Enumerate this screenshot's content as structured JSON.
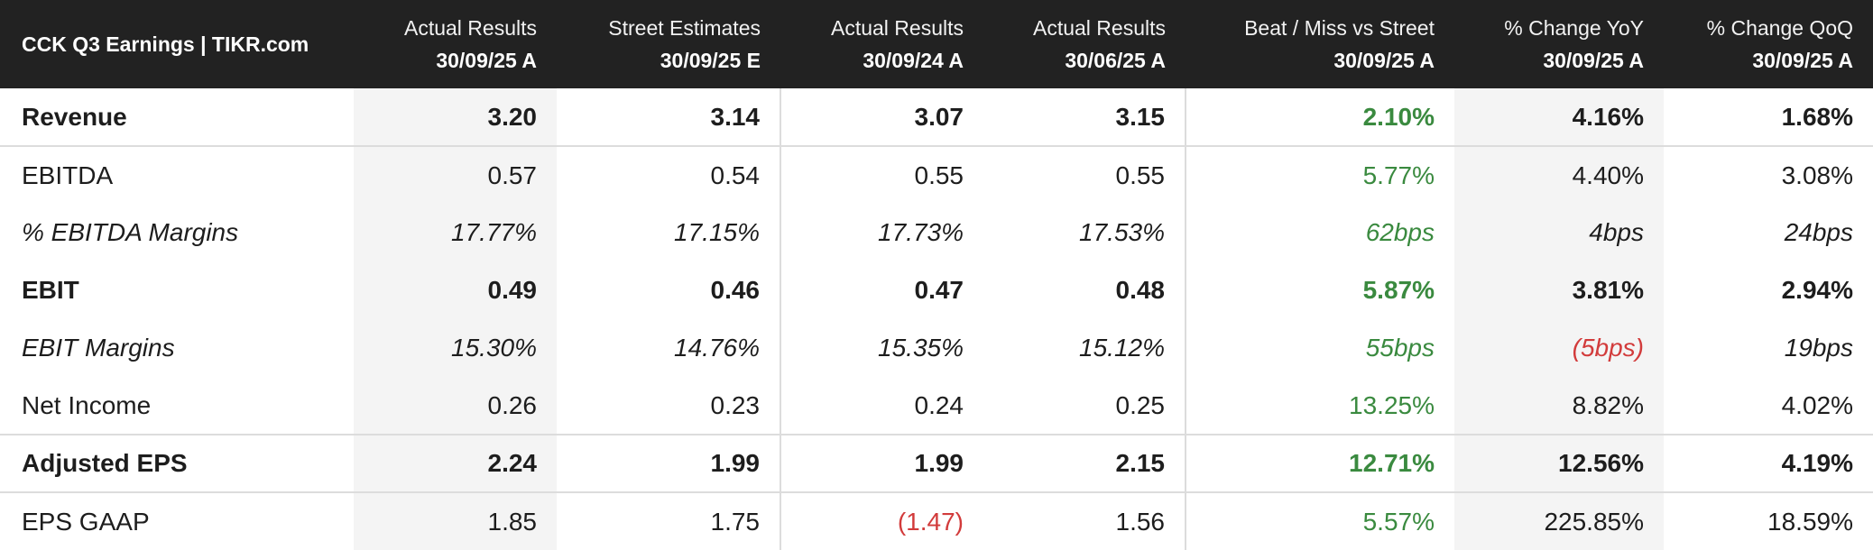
{
  "header": {
    "title": "CCK Q3 Earnings | TIKR.com",
    "columns": [
      {
        "line1": "Actual Results",
        "line2": "30/09/25 A"
      },
      {
        "line1": "Street Estimates",
        "line2": "30/09/25 E"
      },
      {
        "line1": "Actual Results",
        "line2": "30/09/24 A"
      },
      {
        "line1": "Actual Results",
        "line2": "30/06/25 A"
      },
      {
        "line1": "Beat / Miss vs Street",
        "line2": "30/09/25 A"
      },
      {
        "line1": "% Change YoY",
        "line2": "30/09/25 A"
      },
      {
        "line1": "% Change QoQ",
        "line2": "30/09/25 A"
      }
    ]
  },
  "rows": [
    {
      "label": "Revenue",
      "values": [
        "3.20",
        "3.14",
        "3.07",
        "3.15",
        "2.10%",
        "4.16%",
        "1.68%"
      ]
    },
    {
      "label": "EBITDA",
      "values": [
        "0.57",
        "0.54",
        "0.55",
        "0.55",
        "5.77%",
        "4.40%",
        "3.08%"
      ]
    },
    {
      "label": "% EBITDA Margins",
      "values": [
        "17.77%",
        "17.15%",
        "17.73%",
        "17.53%",
        "62bps",
        "4bps",
        "24bps"
      ]
    },
    {
      "label": "EBIT",
      "values": [
        "0.49",
        "0.46",
        "0.47",
        "0.48",
        "5.87%",
        "3.81%",
        "2.94%"
      ]
    },
    {
      "label": "EBIT Margins",
      "values": [
        "15.30%",
        "14.76%",
        "15.35%",
        "15.12%",
        "55bps",
        "(5bps)",
        "19bps"
      ]
    },
    {
      "label": "Net Income",
      "values": [
        "0.26",
        "0.23",
        "0.24",
        "0.25",
        "13.25%",
        "8.82%",
        "4.02%"
      ]
    },
    {
      "label": "Adjusted EPS",
      "values": [
        "2.24",
        "1.99",
        "1.99",
        "2.15",
        "12.71%",
        "12.56%",
        "4.19%"
      ]
    },
    {
      "label": "EPS GAAP",
      "values": [
        "1.85",
        "1.75",
        "(1.47)",
        "1.56",
        "5.57%",
        "225.85%",
        "18.59%"
      ]
    }
  ],
  "colors": {
    "header_bg": "#222222",
    "positive": "#3a8a3f",
    "negative": "#d23b3b",
    "shaded_column": "#f4f4f4"
  }
}
